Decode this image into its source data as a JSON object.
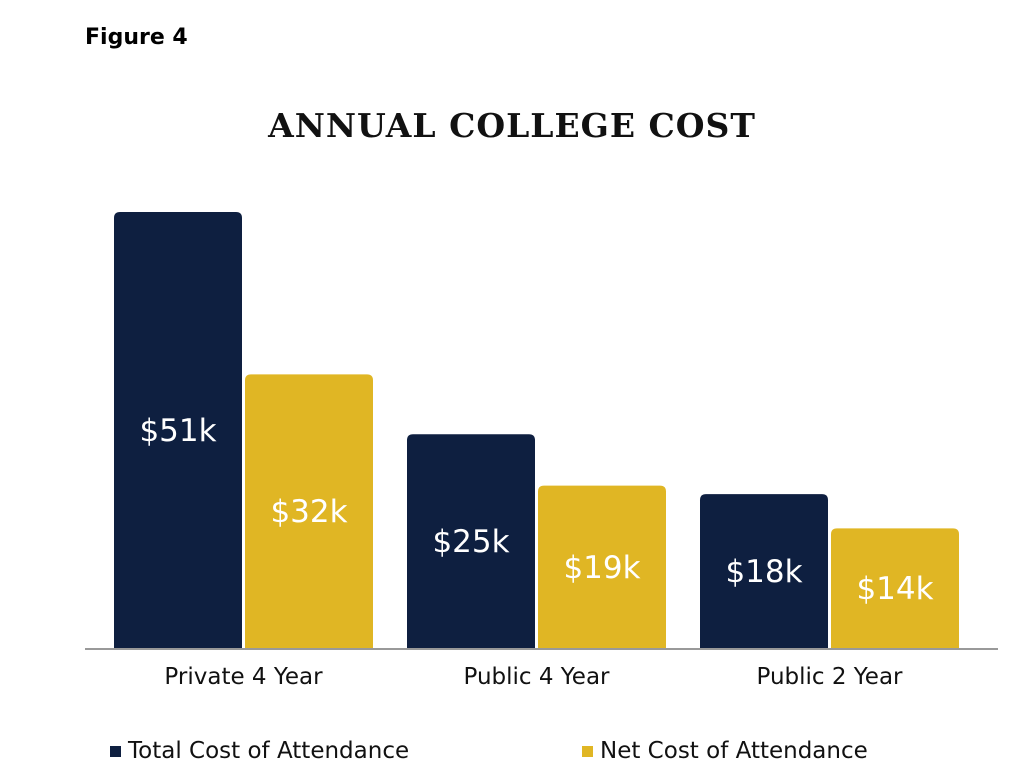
{
  "figure_label": "Figure 4",
  "colors": {
    "total": "#0e1f40",
    "net": "#e0b624",
    "axis": "#999999",
    "value_label": "#ffffff",
    "text": "#111111"
  },
  "chart_data": {
    "type": "bar",
    "title": "ANNUAL COLLEGE COST",
    "categories": [
      "Private 4 Year",
      "Public 4 Year",
      "Public 2 Year"
    ],
    "series": [
      {
        "name": "Total Cost of Attendance",
        "values": [
          51,
          25,
          18
        ],
        "labels": [
          "$51k",
          "$25k",
          "$18k"
        ]
      },
      {
        "name": "Net Cost of Attendance",
        "values": [
          32,
          19,
          14
        ],
        "labels": [
          "$32k",
          "$19k",
          "$14k"
        ]
      }
    ],
    "units": "thousands of dollars",
    "xlabel": "",
    "ylabel": "",
    "ylim": [
      0,
      51
    ],
    "grid": false,
    "legend_position": "bottom"
  }
}
